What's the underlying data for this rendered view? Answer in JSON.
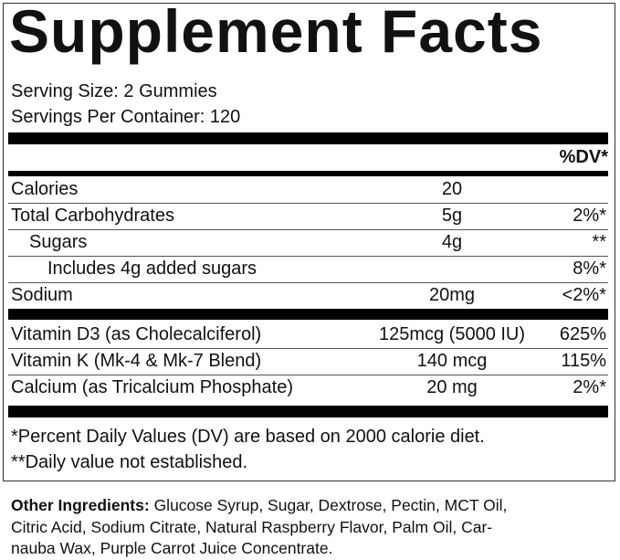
{
  "title": "Supplement Facts",
  "serving_size": "Serving Size: 2 Gummies",
  "servings_per_container": "Servings Per Container: 120",
  "dv_header": "%DV*",
  "nutrients": [
    {
      "name": "Calories",
      "amount": "20"
    },
    {
      "name": "Total Carbohydrates",
      "amount": "5g",
      "dv": "2%*"
    },
    {
      "name": "Sugars",
      "amount": "4g",
      "dv": "**"
    },
    {
      "name": "Includes 4g added sugars",
      "dv": "8%*"
    },
    {
      "name": "Sodium",
      "amount": "20mg",
      "dv": "<2%*"
    }
  ],
  "vitamins": [
    {
      "name": "Vitamin D3 (as Cholecalciferol)",
      "amount": "125mcg (5000 IU)",
      "dv": "625%"
    },
    {
      "name": "Vitamin K (Mk-4 & Mk-7 Blend)",
      "amount": "140 mcg",
      "dv": "115%"
    },
    {
      "name": "Calcium (as Tricalcium Phosphate)",
      "amount": "20 mg",
      "dv": "2%*"
    }
  ],
  "footnotes": [
    "*Percent Daily Values (DV) are based on 2000 calorie diet.",
    "**Daily value not established."
  ],
  "other_ingredients": {
    "label": "Other Ingredients:",
    "lines": [
      "Glucose Syrup, Sugar, Dextrose, Pectin, MCT Oil,",
      "Citric Acid, Sodium Citrate, Natural Raspberry Flavor, Palm Oil, Car-",
      "nauba Wax, Purple Carrot Juice Concentrate."
    ]
  }
}
